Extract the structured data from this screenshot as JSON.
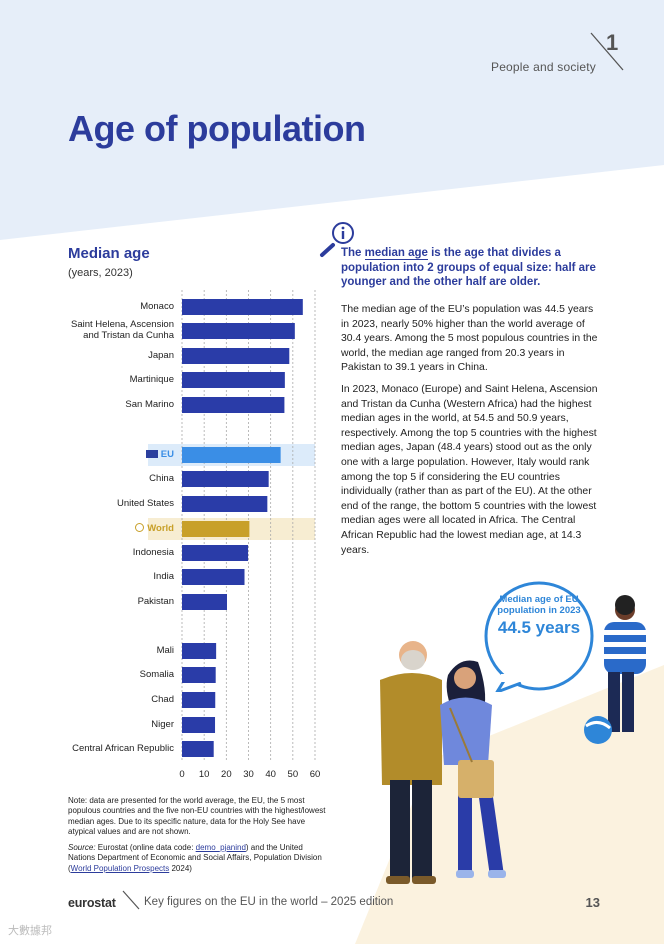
{
  "header": {
    "section_name": "People and society",
    "section_number": "1",
    "page_title": "Age of population"
  },
  "chart": {
    "title": "Median age",
    "subtitle": "(years, 2023)"
  },
  "chart_data": {
    "type": "bar",
    "orientation": "horizontal",
    "title": "Median age",
    "subtitle": "(years, 2023)",
    "categories": [
      "Monaco",
      "Saint Helena, Ascension and Tristan da Cunha",
      "Japan",
      "Martinique",
      "San Marino",
      "EU",
      "China",
      "United States",
      "World",
      "Indonesia",
      "India",
      "Pakistan",
      "Mali",
      "Somalia",
      "Chad",
      "Niger",
      "Central African Republic"
    ],
    "values": [
      54.5,
      50.9,
      48.4,
      46.4,
      46.2,
      44.5,
      39.1,
      38.5,
      30.4,
      29.8,
      28.2,
      20.3,
      15.4,
      15.2,
      15.0,
      14.9,
      14.3
    ],
    "highlight": {
      "EU": "#3a8ee6",
      "World": "#c8a029"
    },
    "bar_color": "#2a3ca8",
    "xlim": [
      0,
      60
    ],
    "xticks": [
      0,
      10,
      20,
      30,
      40,
      50,
      60
    ],
    "grid": true
  },
  "definition": {
    "prefix": "The ",
    "term": "median age",
    "rest": " is the age that divides a population into 2 groups of equal size: half are younger and the other half are older."
  },
  "body": {
    "p1": "The median age of the EU’s population was 44.5 years in 2023, nearly 50% higher than the world average of 30.4 years. Among the 5 most populous countries in the world, the median age ranged from 20.3 years in Pakistan to 39.1 years in China.",
    "p2": "In 2023, Monaco (Europe) and Saint Helena, Ascension and Tristan da Cunha (Western Africa) had the highest median ages in the world, at 54.5 and 50.9 years, respectively. Among the top 5 countries with the highest median ages, Japan (48.4 years) stood out as the only one with a large population. However, Italy would rank among the top 5 if considering the EU countries individually (rather than as part of the EU). At the other end of the range, the bottom 5 countries with the lowest median ages were all located in Africa. The Central African Republic had the lowest median age, at 14.3 years."
  },
  "bubble": {
    "label": "Median age of EU population in 2023",
    "value": "44.5 years"
  },
  "notes": {
    "note": "Note: data are presented for the world average, the EU, the 5 most populous countries and the five non-EU countries with the highest/lowest median ages. Due to its specific nature, data for the Holy See have atypical values and are not shown.",
    "source_label": "Source:",
    "source_text1": " Eurostat (online data code: ",
    "source_code": "demo_pjanind",
    "source_text2": ") and the United Nations Department of Economic and Social Affairs, Population Division (",
    "source_link": "World Population Prospects",
    "source_text3": " 2024)"
  },
  "footer": {
    "brand": "eurostat",
    "text": "Key figures on the EU in the world – 2025 edition",
    "page_number": "13"
  },
  "watermark": "大數據邦",
  "colors": {
    "title_blue": "#2c3c9c",
    "header_bg": "#e6eef9",
    "figure_bg": "#fbf2df"
  }
}
